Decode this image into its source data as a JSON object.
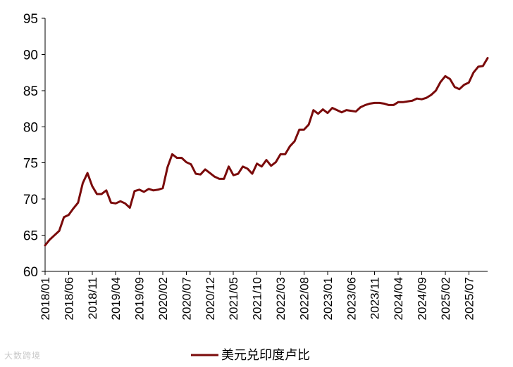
{
  "chart_data": {
    "type": "line",
    "title": "",
    "xlabel": "",
    "ylabel": "",
    "ylim": [
      60,
      95
    ],
    "y_ticks": [
      60,
      65,
      70,
      75,
      80,
      85,
      90,
      95
    ],
    "x_tick_labels": [
      "2018/01",
      "2018/06",
      "2018/11",
      "2019/04",
      "2019/09",
      "2020/02",
      "2020/07",
      "2020/12",
      "2021/05",
      "2021/10",
      "2022/03",
      "2022/08",
      "2023/01",
      "2023/06",
      "2023/11",
      "2024/04",
      "2024/09",
      "2025/02",
      "2025/07"
    ],
    "grid": false,
    "legend_position": "bottom",
    "x": [
      "2018/01",
      "2018/02",
      "2018/03",
      "2018/04",
      "2018/05",
      "2018/06",
      "2018/07",
      "2018/08",
      "2018/09",
      "2018/10",
      "2018/11",
      "2018/12",
      "2019/01",
      "2019/02",
      "2019/03",
      "2019/04",
      "2019/05",
      "2019/06",
      "2019/07",
      "2019/08",
      "2019/09",
      "2019/10",
      "2019/11",
      "2019/12",
      "2020/01",
      "2020/02",
      "2020/03",
      "2020/04",
      "2020/05",
      "2020/06",
      "2020/07",
      "2020/08",
      "2020/09",
      "2020/10",
      "2020/11",
      "2020/12",
      "2021/01",
      "2021/02",
      "2021/03",
      "2021/04",
      "2021/05",
      "2021/06",
      "2021/07",
      "2021/08",
      "2021/09",
      "2021/10",
      "2021/11",
      "2021/12",
      "2022/01",
      "2022/02",
      "2022/03",
      "2022/04",
      "2022/05",
      "2022/06",
      "2022/07",
      "2022/08",
      "2022/09",
      "2022/10",
      "2022/11",
      "2022/12",
      "2023/01",
      "2023/02",
      "2023/03",
      "2023/04",
      "2023/05",
      "2023/06",
      "2023/07",
      "2023/08",
      "2023/09",
      "2023/10",
      "2023/11",
      "2023/12",
      "2024/01",
      "2024/02",
      "2024/03",
      "2024/04",
      "2024/05",
      "2024/06",
      "2024/07",
      "2024/08",
      "2024/09",
      "2024/10",
      "2024/11",
      "2024/12",
      "2025/01",
      "2025/02",
      "2025/03",
      "2025/04",
      "2025/05",
      "2025/06",
      "2025/07",
      "2025/08",
      "2025/09",
      "2025/10",
      "2025/11"
    ],
    "series": [
      {
        "name": "美元兑印度卢比",
        "color": "#7a0a0a",
        "values": [
          63.6,
          64.4,
          65.0,
          65.6,
          67.5,
          67.8,
          68.7,
          69.5,
          72.2,
          73.6,
          71.8,
          70.7,
          70.7,
          71.2,
          69.5,
          69.4,
          69.7,
          69.4,
          68.8,
          71.1,
          71.3,
          71.0,
          71.4,
          71.2,
          71.3,
          71.5,
          74.4,
          76.2,
          75.7,
          75.7,
          75.1,
          74.8,
          73.5,
          73.4,
          74.1,
          73.6,
          73.1,
          72.8,
          72.8,
          74.5,
          73.3,
          73.5,
          74.5,
          74.2,
          73.5,
          74.9,
          74.5,
          75.4,
          74.6,
          75.1,
          76.2,
          76.2,
          77.3,
          78.0,
          79.6,
          79.6,
          80.3,
          82.3,
          81.8,
          82.4,
          81.9,
          82.6,
          82.3,
          82.0,
          82.3,
          82.2,
          82.1,
          82.7,
          83.0,
          83.2,
          83.3,
          83.3,
          83.2,
          83.0,
          83.0,
          83.4,
          83.4,
          83.5,
          83.6,
          83.9,
          83.8,
          84.0,
          84.4,
          85.0,
          86.2,
          87.0,
          86.6,
          85.5,
          85.2,
          85.8,
          86.1,
          87.5,
          88.3,
          88.4,
          89.5
        ]
      }
    ]
  },
  "legend": {
    "label": "美元兑印度卢比"
  },
  "watermark": {
    "text": "大数跨境"
  }
}
